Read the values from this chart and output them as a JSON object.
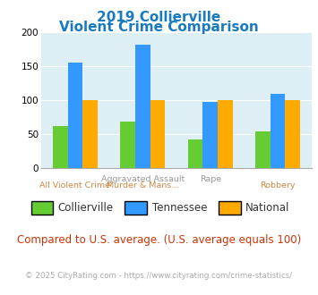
{
  "title_line1": "2019 Collierville",
  "title_line2": "Violent Crime Comparison",
  "series": {
    "Collierville": [
      62,
      68,
      42,
      54
    ],
    "Tennessee": [
      156,
      182,
      98,
      110
    ],
    "National": [
      100,
      100,
      100,
      100
    ]
  },
  "colors": {
    "Collierville": "#66cc33",
    "Tennessee": "#3399ff",
    "National": "#ffaa00"
  },
  "ylim": [
    0,
    200
  ],
  "yticks": [
    0,
    50,
    100,
    150,
    200
  ],
  "background_color": "#ddeef5",
  "title_color": "#1a7abf",
  "label_top": [
    "",
    "Aggravated Assault",
    "Rape",
    ""
  ],
  "label_bot": [
    "All Violent Crime",
    "Murder & Mans...",
    "",
    "Robbery"
  ],
  "label_top_color": "#999999",
  "label_bot_color": "#cc8844",
  "footer_note": "Compared to U.S. average. (U.S. average equals 100)",
  "footer_note_color": "#cc3300",
  "copyright": "© 2025 CityRating.com - https://www.cityrating.com/crime-statistics/",
  "copyright_color": "#aaaaaa"
}
